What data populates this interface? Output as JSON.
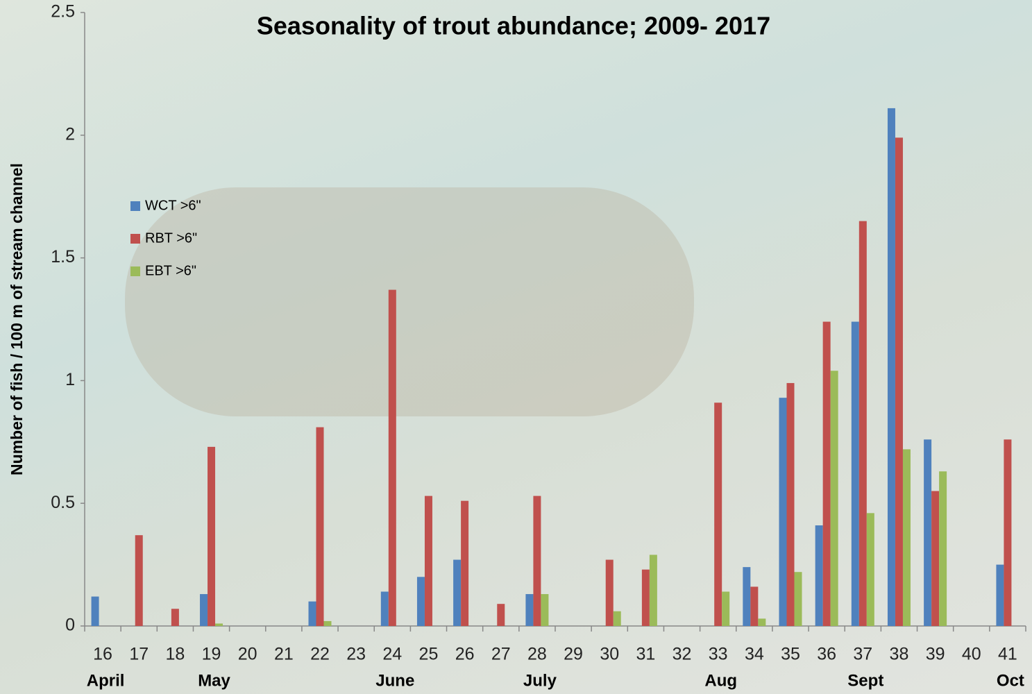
{
  "chart_data": {
    "type": "bar",
    "title": "Seasonality of trout abundance; 2009- 2017",
    "y_label": "Number of fish / 100 m of stream channel",
    "categories": [
      "16",
      "17",
      "18",
      "19",
      "20",
      "21",
      "22",
      "23",
      "24",
      "25",
      "26",
      "27",
      "28",
      "29",
      "30",
      "31",
      "32",
      "33",
      "34",
      "35",
      "36",
      "37",
      "38",
      "39",
      "40",
      "41"
    ],
    "month_labels": [
      "April",
      null,
      null,
      "May",
      null,
      null,
      null,
      null,
      "June",
      null,
      null,
      null,
      "July",
      null,
      null,
      null,
      null,
      "Aug",
      null,
      null,
      null,
      "Sept",
      null,
      null,
      null,
      "Oct"
    ],
    "series": [
      {
        "name": "WCT >6\"",
        "color": "#4f81bd",
        "values": [
          0.12,
          0,
          0,
          0.13,
          0,
          0,
          0.1,
          0,
          0.14,
          0.2,
          0.27,
          0,
          0.13,
          0,
          0,
          0,
          0,
          0,
          0.24,
          0.93,
          0.41,
          1.24,
          2.11,
          0.76,
          0,
          0.25
        ]
      },
      {
        "name": "RBT >6\"",
        "color": "#c0504d",
        "values": [
          0,
          0.37,
          0.07,
          0.73,
          0,
          0,
          0.81,
          0,
          1.37,
          0.53,
          0.51,
          0.09,
          0.53,
          0,
          0.27,
          0.23,
          0,
          0.91,
          0.16,
          0.99,
          1.24,
          1.65,
          1.99,
          0.55,
          0,
          0.76
        ]
      },
      {
        "name": "EBT >6\"",
        "color": "#9bbb59",
        "values": [
          0,
          0,
          0,
          0.01,
          0,
          0,
          0.02,
          0,
          0,
          0,
          0,
          0,
          0.13,
          0,
          0.06,
          0.29,
          0,
          0.14,
          0.03,
          0.22,
          1.04,
          0.46,
          0.72,
          0.63,
          0,
          0
        ]
      }
    ],
    "ylim": [
      0,
      2.5
    ],
    "yticks": [
      0,
      0.5,
      1,
      1.5,
      2,
      2.5
    ],
    "grid": false,
    "legend": "left"
  }
}
